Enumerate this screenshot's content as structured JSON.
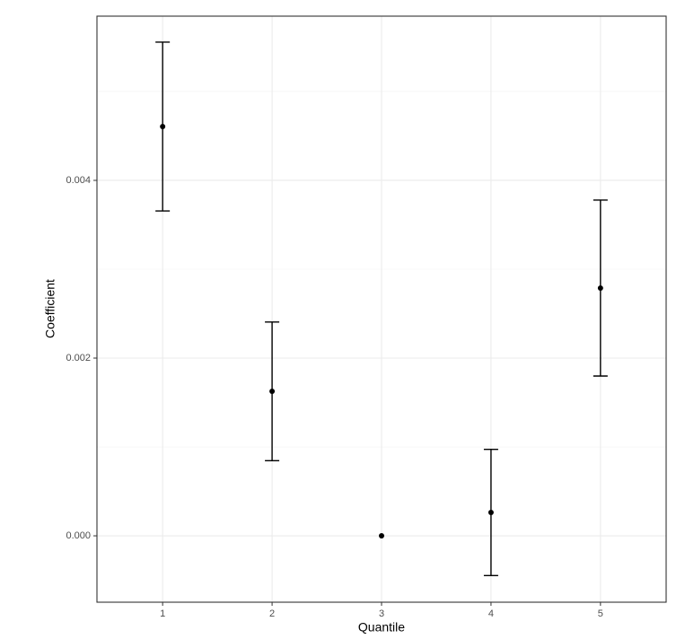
{
  "chart_data": {
    "type": "errorbar",
    "x_label": "Quantile",
    "y_label": "Coefficient",
    "x": [
      1,
      2,
      3,
      4,
      5
    ],
    "values": [
      0.004606,
      0.001626,
      0,
      0.000263,
      0.002788
    ],
    "errors": [
      0.00095,
      0.00078,
      null,
      0.00071,
      0.00099
    ],
    "color": "#000000",
    "xlim": [
      0.4,
      5.6
    ],
    "xticks": [
      1,
      2,
      3,
      4,
      5
    ],
    "ylim": [
      -0.000747,
      0.005848
    ],
    "yticks": [
      {
        "value": 0,
        "label": "0.000"
      },
      {
        "value": 0.002,
        "label": "0.002"
      },
      {
        "value": 0.004,
        "label": "0.004"
      }
    ],
    "y_minor_ticks": [
      0.001,
      0.003,
      0.005
    ],
    "grid": true
  }
}
